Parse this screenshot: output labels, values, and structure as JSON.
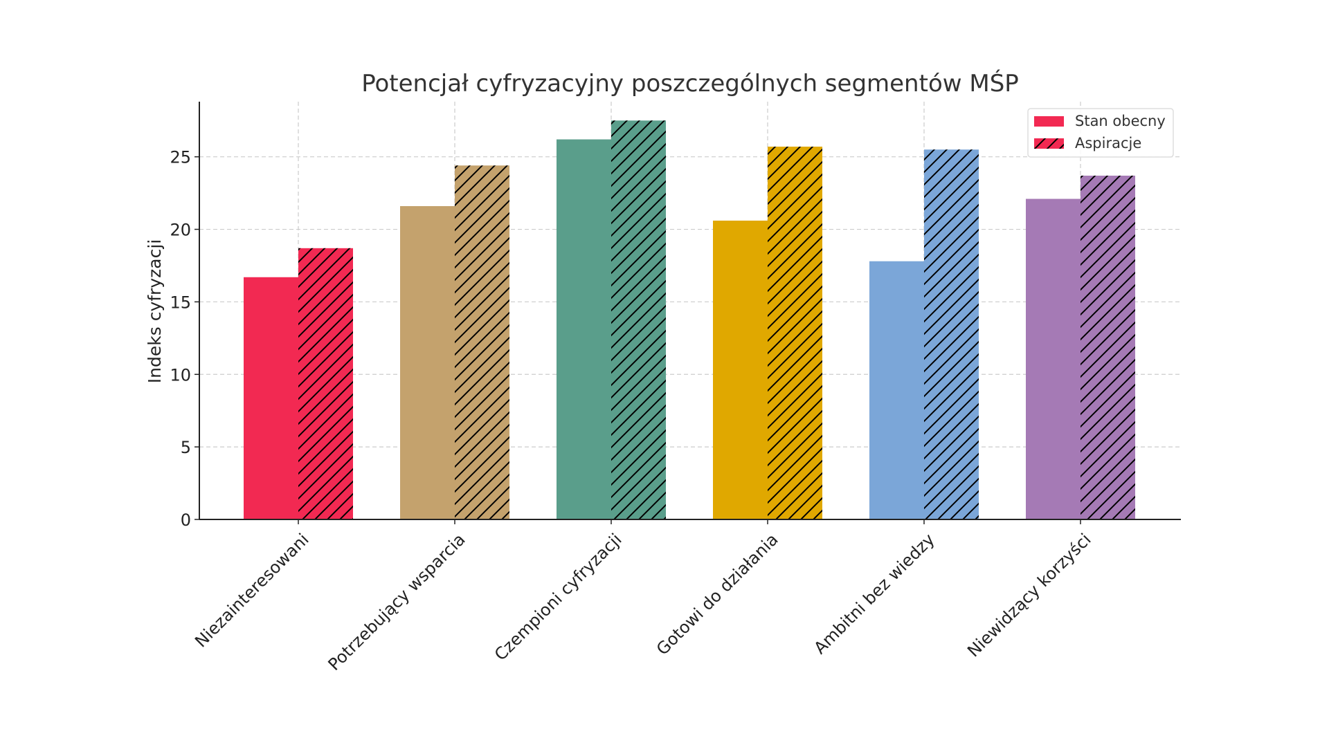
{
  "chart_data": {
    "type": "bar",
    "title": "Potencjał cyfryzacyjny poszczególnych segmentów MŚP",
    "xlabel": "",
    "ylabel": "Indeks cyfryzacji",
    "ylim": [
      0,
      28.8
    ],
    "yticks": [
      0,
      5,
      10,
      15,
      20,
      25
    ],
    "grid": true,
    "legend_position": "top-right",
    "categories": [
      "Niezainteresowani",
      "Potrzebujący wsparcia",
      "Czempioni cyfryzacji",
      "Gotowi do działania",
      "Ambitni bez wiedzy",
      "Niewidzący korzyści"
    ],
    "colors": [
      "#f22952",
      "#c4a26d",
      "#5a9e8b",
      "#e0a800",
      "#7ba6d8",
      "#a57ab5"
    ],
    "series": [
      {
        "name": "Stan obecny",
        "hatched": false,
        "values": [
          16.7,
          21.6,
          26.2,
          20.6,
          17.8,
          22.1
        ]
      },
      {
        "name": "Aspiracje",
        "hatched": true,
        "values": [
          18.7,
          24.4,
          27.5,
          25.7,
          25.5,
          23.7
        ]
      }
    ]
  }
}
